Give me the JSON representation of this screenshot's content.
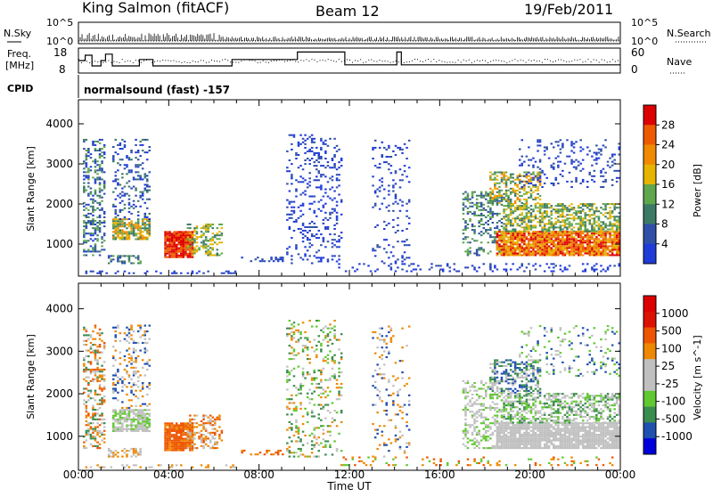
{
  "header": {
    "station": "King Salmon (fitACF)",
    "beam": "Beam 12",
    "date": "19/Feb/2011"
  },
  "top_panels": {
    "nsky_label": "N.Sky",
    "nsky_ticks": [
      "10^5",
      "10^0"
    ],
    "nsearch_label": "N.Search",
    "nsearch_ticks": [
      "10^5",
      "10^0"
    ],
    "freq_label_1": "Freq.",
    "freq_label_2": "[MHz]",
    "freq_ticks": [
      "18",
      "8"
    ],
    "nave_label": "Nave",
    "nave_ticks": [
      "60",
      "0"
    ],
    "cpid_label": "CPID",
    "cpid_value": "normalsound (fast) -157"
  },
  "colors": {
    "power_scale": [
      "#1f3bd8",
      "#2f4fa8",
      "#3c7a66",
      "#5fa64c",
      "#e6b400",
      "#f08a00",
      "#ee5a00",
      "#dd0000"
    ],
    "velocity_scale": [
      "#0000dd",
      "#2050b0",
      "#3b8c4f",
      "#60c830",
      "#c0c0c0",
      "#c0c0c0",
      "#ee8800",
      "#ee5500",
      "#dd1100",
      "#dd0000"
    ]
  },
  "chart_data": [
    {
      "type": "heatmap",
      "title": "Power",
      "xlabel": "Time UT",
      "ylabel": "Slant Range [km]",
      "x_ticks": [
        "00:00",
        "04:00",
        "08:00",
        "12:00",
        "16:00",
        "20:00",
        "00:00"
      ],
      "y_ticks": [
        "1000",
        "2000",
        "3000",
        "4000"
      ],
      "ylim": [
        200,
        4600
      ],
      "colorbar_label": "Power [dB]",
      "colorbar_ticks": [
        "4",
        "8",
        "12",
        "16",
        "20",
        "24",
        "28"
      ]
    },
    {
      "type": "heatmap",
      "title": "Velocity",
      "xlabel": "Time UT",
      "ylabel": "Slant Range [km]",
      "x_ticks": [
        "00:00",
        "04:00",
        "08:00",
        "12:00",
        "16:00",
        "20:00",
        "00:00"
      ],
      "y_ticks": [
        "1000",
        "2000",
        "3000",
        "4000"
      ],
      "ylim": [
        200,
        4600
      ],
      "colorbar_label": "Velocity [m s^-1]",
      "colorbar_ticks": [
        "1000",
        "500",
        "100",
        "25",
        "-25",
        "-100",
        "-500",
        "-1000"
      ]
    }
  ]
}
